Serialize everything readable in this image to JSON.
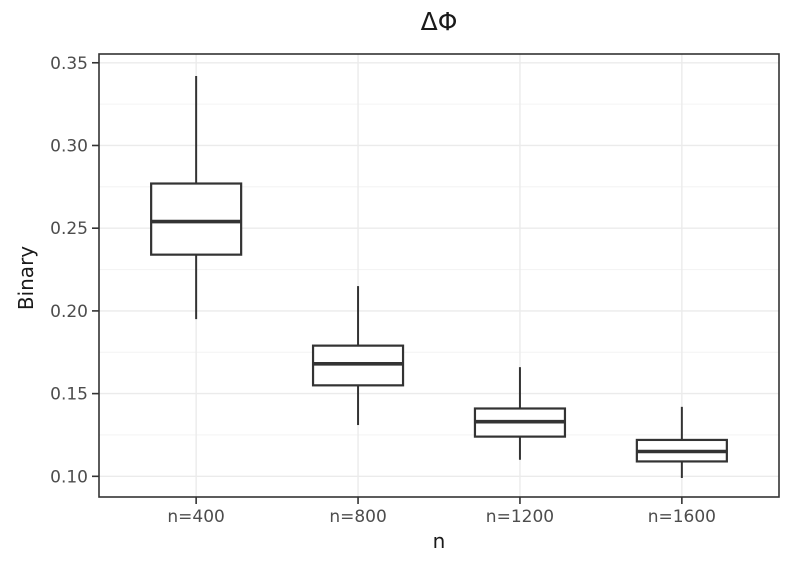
{
  "chart_data": {
    "type": "boxplot",
    "title": "ΔΦ",
    "xlabel": "n",
    "ylabel": "Binary",
    "categories": [
      "n=400",
      "n=800",
      "n=1200",
      "n=1600"
    ],
    "series": [
      {
        "category": "n=400",
        "whisker_low": 0.195,
        "q1": 0.234,
        "median": 0.254,
        "q3": 0.277,
        "whisker_high": 0.342
      },
      {
        "category": "n=800",
        "whisker_low": 0.131,
        "q1": 0.155,
        "median": 0.168,
        "q3": 0.179,
        "whisker_high": 0.215
      },
      {
        "category": "n=1200",
        "whisker_low": 0.11,
        "q1": 0.124,
        "median": 0.133,
        "q3": 0.141,
        "whisker_high": 0.166
      },
      {
        "category": "n=1600",
        "whisker_low": 0.099,
        "q1": 0.109,
        "median": 0.115,
        "q3": 0.122,
        "whisker_high": 0.142
      }
    ],
    "yticks": [
      0.1,
      0.15,
      0.2,
      0.25,
      0.3,
      0.35
    ],
    "ytick_labels": [
      "0.10",
      "0.15",
      "0.20",
      "0.25",
      "0.30",
      "0.35"
    ],
    "minor_yticks": [
      0.125,
      0.175,
      0.225,
      0.275,
      0.325
    ],
    "ylim": [
      0.0875,
      0.3553
    ],
    "grid": true,
    "legend": false
  },
  "colors": {
    "background": "#ffffff",
    "panel_border": "#333333",
    "box_stroke": "#333333",
    "box_fill": "#ffffff",
    "grid_major": "#ebebeb",
    "grid_minor": "#f4f4f4",
    "tick_mark": "#333333",
    "tick_label": "#4d4d4d",
    "title_text": "#1a1a1a"
  }
}
